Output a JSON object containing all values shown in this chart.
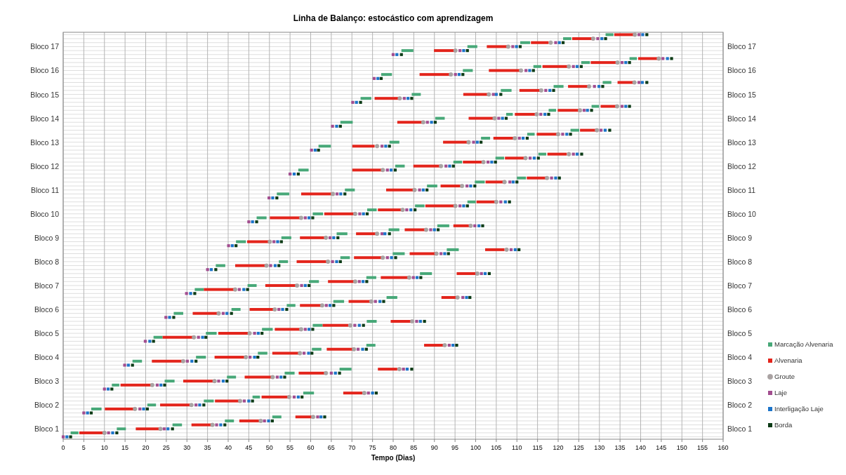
{
  "chart_data": {
    "type": "bar",
    "orientation": "horizontal",
    "title": "Linha de Balanço: estocástico com aprendizagem",
    "xlabel": "Tempo (Dias)",
    "xlim": [
      0,
      160
    ],
    "xticks": [
      0,
      5,
      10,
      15,
      20,
      25,
      30,
      35,
      40,
      45,
      50,
      55,
      60,
      65,
      70,
      75,
      80,
      85,
      90,
      95,
      100,
      105,
      110,
      115,
      120,
      125,
      130,
      135,
      140,
      145,
      150,
      155,
      160
    ],
    "categories": [
      null,
      null,
      null,
      "Bloco 17",
      null,
      null,
      null,
      null,
      null,
      "Bloco 16",
      null,
      null,
      null,
      null,
      null,
      "Bloco 15",
      null,
      null,
      null,
      null,
      null,
      "Bloco 14",
      null,
      null,
      null,
      null,
      null,
      "Bloco 13",
      null,
      null,
      null,
      null,
      null,
      "Bloco 12",
      null,
      null,
      null,
      null,
      null,
      "Bloco 11",
      null,
      null,
      null,
      null,
      null,
      "Bloco 10",
      null,
      null,
      null,
      null,
      null,
      "Bloco 9",
      null,
      null,
      null,
      null,
      null,
      "Bloco 8",
      null,
      null,
      null,
      null,
      null,
      "Bloco 7",
      null,
      null,
      null,
      null,
      null,
      "Bloco 6",
      null,
      null,
      null,
      null,
      null,
      "Bloco 5",
      null,
      null,
      null,
      null,
      null,
      "Bloco 4",
      null,
      null,
      null,
      null,
      null,
      "Bloco 3",
      null,
      null,
      null,
      null,
      null,
      "Bloco 2",
      null,
      null,
      null,
      null,
      null,
      "Bloco 1",
      null,
      null
    ],
    "grid": true,
    "legend": "bottom right",
    "series": [
      {
        "name": "Marcação Alvenaria",
        "color": "#47a878",
        "base": [
          131.5,
          121.2,
          110.8,
          98,
          82,
          null,
          137.3,
          125.6,
          114,
          96.9,
          77.1,
          null,
          130.8,
          118.9,
          106.1,
          84.5,
          72.1,
          null,
          128.1,
          117.7,
          107.4,
          90.2,
          67.2,
          null,
          123,
          112.5,
          101.3,
          79.1,
          61.9,
          null,
          115.2,
          104.8,
          94.6,
          80.5,
          57,
          null,
          110,
          99.8,
          88.2,
          68.3,
          51.8,
          null,
          98,
          85.3,
          73.7,
          60.5,
          46.9,
          null,
          90.7,
          78.9,
          66.3,
          52.9,
          41.9,
          null,
          93,
          79.9,
          67.2,
          52.3,
          37,
          null,
          86.5,
          73.5,
          59.6,
          44.7,
          31.9,
          null,
          78.4,
          65.5,
          54.2,
          40.8,
          26.8,
          null,
          73.6,
          60.5,
          48.2,
          34.6,
          21.9,
          null,
          73.5,
          60.3,
          47.2,
          32.2,
          16.8,
          null,
          67,
          53.7,
          39.7,
          24.6,
          11.8,
          null,
          58.2,
          45.9,
          34.1,
          20.4,
          6.8,
          null,
          50.7,
          39.2,
          26.5,
          13,
          1.8,
          null
        ],
        "values": [
          1.9,
          2,
          2.4,
          2.4,
          2.9,
          null,
          1.8,
          2.1,
          1.9,
          2.4,
          2.6,
          null,
          2.1,
          2.4,
          2.6,
          2.2,
          2.6,
          null,
          1.8,
          1.8,
          1.6,
          2.3,
          3,
          null,
          2.1,
          1.8,
          2.2,
          2.4,
          3,
          null,
          1.9,
          2.1,
          2.1,
          2.3,
          2.5,
          null,
          2.2,
          2.4,
          2.5,
          2.4,
          3,
          null,
          2,
          2.3,
          2.3,
          2.5,
          2.4,
          null,
          2.9,
          2.6,
          2.6,
          2.4,
          2.4,
          null,
          2.9,
          2.9,
          2.3,
          2.2,
          2.3,
          null,
          2.9,
          2.4,
          2.4,
          2.2,
          2.2,
          null,
          2.6,
          2.6,
          2.1,
          2.2,
          2.3,
          null,
          2.4,
          2.4,
          2.6,
          2.6,
          2.2,
          null,
          2.2,
          2.3,
          2.3,
          2.4,
          2.3,
          null,
          2.9,
          2.4,
          2.2,
          2.4,
          1.8,
          null,
          2.6,
          1.8,
          2.4,
          2.1,
          2.5,
          null,
          2.2,
          2.2,
          2.3,
          2.2,
          1.9,
          null
        ]
      },
      {
        "name": "Alvenaria",
        "color": "#e3241b",
        "base": [
          133.6,
          123.4,
          113.4,
          102.7,
          89.9,
          null,
          139.4,
          127.9,
          116.2,
          103.2,
          86.4,
          null,
          134.4,
          122.4,
          110.6,
          97,
          75.5,
          null,
          130.3,
          119.9,
          109.5,
          98.3,
          81,
          null,
          125.3,
          114.8,
          104.3,
          92.1,
          70.1,
          null,
          117.4,
          107.1,
          96.9,
          84.9,
          70.1,
          null,
          112.4,
          102.4,
          91.5,
          78.3,
          57.7,
          null,
          100.2,
          87.8,
          76.3,
          63.3,
          50.1,
          null,
          94.6,
          82.8,
          71,
          57.4,
          44.6,
          null,
          102.3,
          84,
          70.5,
          56.6,
          41.7,
          null,
          95.4,
          77,
          64.2,
          49,
          34.1,
          null,
          91.7,
          69.2,
          57.4,
          45.2,
          31.4,
          null,
          79.4,
          62.9,
          51.3,
          37.6,
          24.1,
          null,
          87.5,
          63.9,
          50.7,
          36.7,
          21.5,
          null,
          76.3,
          57.1,
          44,
          29.1,
          13.9,
          null,
          67.9,
          48.1,
          36.8,
          23.5,
          10.1,
          null,
          56.3,
          42.7,
          31.1,
          17.6,
          3.9,
          null
        ],
        "values": [
          5,
          5,
          4.3,
          5,
          5.1,
          null,
          4.7,
          6.3,
          6.2,
          7.6,
          7.4,
          null,
          3.9,
          5,
          5.2,
          6,
          6,
          null,
          3.9,
          5.2,
          5,
          6,
          6,
          null,
          3.9,
          5.2,
          5,
          6.2,
          5.4,
          null,
          4.7,
          5,
          5,
          6.7,
          7.2,
          null,
          4.9,
          4.6,
          5.2,
          6.9,
          7.3,
          null,
          4.8,
          7.1,
          6,
          7.5,
          7.6,
          null,
          3.9,
          5,
          4.9,
          6,
          5.5,
          null,
          4.7,
          6.5,
          7,
          7.6,
          7.6,
          null,
          4.7,
          6.6,
          6.3,
          7.6,
          7.6,
          null,
          3.9,
          5.2,
          5.2,
          6.1,
          6.3,
          null,
          5.2,
          6.3,
          6.4,
          7.5,
          7.6,
          null,
          4.8,
          6.6,
          6.7,
          7.3,
          7.3,
          null,
          4.7,
          6.6,
          6.8,
          7.6,
          7.6,
          null,
          4.7,
          6.7,
          5.9,
          7.4,
          7.2,
          null,
          4,
          5,
          5.1,
          6,
          6.1,
          null
        ]
      },
      {
        "name": "Groute",
        "type": "scatter",
        "marker": "circle",
        "color": "#a9a2a2",
        "values": [
          138.6,
          128.5,
          118.2,
          107.9,
          95.1,
          null,
          144.4,
          134.4,
          122.6,
          111,
          94,
          null,
          138.5,
          127.5,
          115.9,
          103.2,
          81.6,
          null,
          134.3,
          125.3,
          114.8,
          104.6,
          87.3,
          null,
          129.4,
          120,
          109.5,
          98.3,
          76.1,
          null,
          122.6,
          112.1,
          101.9,
          91.6,
          77.5,
          null,
          117.3,
          107,
          96.7,
          85.2,
          65.4,
          null,
          105,
          95.1,
          82.3,
          70.8,
          57.7,
          null,
          98.8,
          88,
          76.1,
          63.7,
          50.1,
          null,
          107.5,
          90.5,
          77.5,
          64.2,
          49.3,
          null,
          100.4,
          83.9,
          70.8,
          56.7,
          41.7,
          null,
          95.6,
          74.7,
          62.8,
          51.3,
          37.7,
          null,
          84.6,
          69.6,
          57.7,
          45.2,
          31.7,
          null,
          92.5,
          70.5,
          57.4,
          44.3,
          29.1,
          null,
          81.5,
          63.7,
          50.8,
          36.7,
          21.6,
          null,
          73,
          54.8,
          42.9,
          31.1,
          17.4,
          null,
          60.6,
          47.9,
          36.2,
          23.6,
          10,
          null
        ]
      },
      {
        "name": "Laje",
        "type": "scatter",
        "marker": "square",
        "color": "#a24d8f",
        "values": [
          139.6,
          129.6,
          119.4,
          109,
          96.2,
          80,
          145.4,
          135.5,
          123.7,
          112.2,
          95.1,
          75.4,
          139.6,
          128.8,
          117,
          104.3,
          82.7,
          70.2,
          135.5,
          126.3,
          115.8,
          105.6,
          88.3,
          65.3,
          130.4,
          121.1,
          110.6,
          99.5,
          77.3,
          60.2,
          123.7,
          113.2,
          103,
          92.8,
          78.6,
          55,
          118.4,
          108.3,
          97.9,
          86.4,
          66.4,
          49.9,
          106.1,
          96.2,
          83.3,
          71.9,
          58.7,
          45,
          99.8,
          89.1,
          77.3,
          64.7,
          51.1,
          40.1,
          108.6,
          91.6,
          78.6,
          65.3,
          50.3,
          35,
          101.4,
          84.9,
          71.8,
          57.8,
          42.7,
          29.9,
          96.9,
          75.7,
          63.8,
          52.3,
          38.8,
          24.9,
          85.7,
          70.7,
          58.7,
          46.4,
          32.8,
          19.9,
          93.6,
          71.5,
          58.4,
          45.3,
          30.1,
          14.9,
          82.5,
          65,
          51.9,
          37.7,
          22.8,
          10,
          74,
          56,
          43.9,
          32.2,
          18.6,
          5,
          61.7,
          48.8,
          37.2,
          24.5,
          11,
          0
        ]
      },
      {
        "name": "Interligação Laje",
        "type": "scatter",
        "marker": "square",
        "color": "#1c74c9",
        "values": [
          140.5,
          130.6,
          120.3,
          109.9,
          97.1,
          80.9,
          146.5,
          136.4,
          124.6,
          113.1,
          96,
          76.3,
          140.4,
          129.9,
          118,
          105,
          83.6,
          71.1,
          136.4,
          127.1,
          116.8,
          106.5,
          89.3,
          66.3,
          131.4,
          122.1,
          111.5,
          100.4,
          78.2,
          61.1,
          124.6,
          114.2,
          103.9,
          93.7,
          79.5,
          56,
          119.4,
          109.1,
          98.8,
          87.3,
          67.3,
          50.8,
          107.2,
          97.1,
          84.3,
          72.8,
          59.6,
          45.9,
          100.8,
          90,
          78,
          65.6,
          52,
          41,
          109.6,
          92.5,
          79.6,
          66.3,
          51.4,
          35.9,
          102.3,
          85.8,
          72.7,
          58.7,
          43.8,
          30.9,
          97.8,
          76.8,
          64.7,
          53.2,
          39.7,
          25.8,
          86.6,
          71.8,
          59.6,
          47.3,
          33.8,
          21,
          94.5,
          72.6,
          59.5,
          46.4,
          31.2,
          15.8,
          83.4,
          66,
          52.8,
          38.8,
          23.7,
          10.9,
          75,
          57,
          45,
          33.1,
          19.5,
          5.9,
          62.5,
          49.8,
          38.2,
          25.4,
          12,
          0.9
        ]
      },
      {
        "name": "Borda",
        "type": "scatter",
        "marker": "square",
        "color": "#0b3b16",
        "values": [
          141.5,
          131.5,
          121.2,
          110.8,
          98,
          82,
          147.5,
          137.3,
          125.6,
          114,
          96.9,
          77.1,
          141.5,
          130.8,
          118.9,
          106.1,
          84.5,
          72.1,
          137.3,
          128.1,
          117.7,
          107.4,
          90.2,
          67.2,
          132.5,
          123,
          112.5,
          101.3,
          79.1,
          61.9,
          125.7,
          115.2,
          104.8,
          94.6,
          80.5,
          57,
          120.3,
          110,
          99.8,
          88.2,
          68.3,
          51.8,
          108.2,
          98,
          85.3,
          73.7,
          60.5,
          46.9,
          101.7,
          90.9,
          79.1,
          66.6,
          52.9,
          41.9,
          110.5,
          93.4,
          80.6,
          67.2,
          52.3,
          37,
          103.3,
          86.7,
          73.6,
          59.6,
          44.7,
          31.9,
          98.6,
          77.7,
          65.6,
          54.2,
          40.8,
          26.8,
          87.6,
          72.8,
          60.5,
          48.2,
          34.6,
          21.9,
          95.4,
          73.5,
          60.3,
          47.2,
          32.2,
          16.8,
          84.5,
          67,
          53.7,
          39.7,
          24.6,
          11.8,
          75.9,
          57.9,
          45.9,
          34.1,
          20.4,
          6.8,
          63.4,
          50.7,
          39.2,
          26.5,
          13,
          1.8
        ]
      }
    ]
  }
}
